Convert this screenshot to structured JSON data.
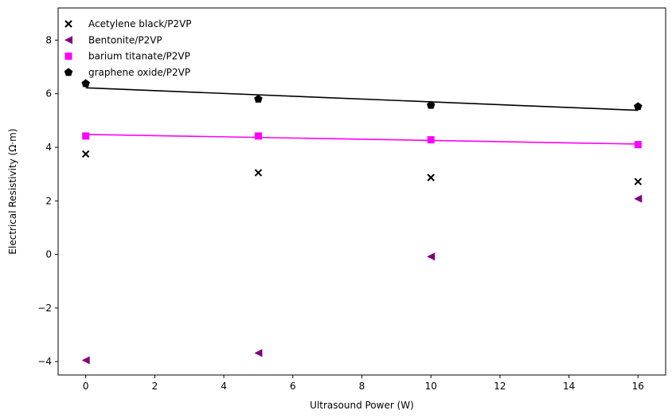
{
  "chart_data": {
    "type": "scatter",
    "title": "",
    "xlabel": "Ultrasound Power (W)",
    "ylabel": "Electrical Resistivity (Ω·m)",
    "xlim": [
      -0.8,
      16.8
    ],
    "ylim": [
      -4.5,
      9.2
    ],
    "x_ticks": [
      0,
      2,
      4,
      6,
      8,
      10,
      12,
      14,
      16
    ],
    "y_ticks": [
      -4,
      -2,
      0,
      2,
      4,
      6,
      8
    ],
    "x_tick_labels": [
      "0",
      "2",
      "4",
      "6",
      "8",
      "10",
      "12",
      "14",
      "16"
    ],
    "y_tick_labels": [
      "−4",
      "−2",
      "0",
      "2",
      "4",
      "6",
      "8"
    ],
    "grid": false,
    "legend_position": "top-left",
    "series": [
      {
        "name": "Acetylene black/P2VP",
        "marker": "x",
        "color": "#000000",
        "x": [
          0,
          5,
          10,
          16
        ],
        "y": [
          3.75,
          3.05,
          2.87,
          2.72
        ]
      },
      {
        "name": "Bentonite/P2VP",
        "marker": "triangle-left",
        "color": "#800080",
        "x": [
          0,
          5,
          10,
          16
        ],
        "y": [
          -3.95,
          -3.68,
          -0.08,
          2.08
        ]
      },
      {
        "name": "barium titanate/P2VP",
        "marker": "square",
        "color": "#ff00ff",
        "x": [
          0,
          5,
          10,
          16
        ],
        "y": [
          4.42,
          4.42,
          4.28,
          4.1
        ],
        "fit_line": {
          "x": [
            0,
            16
          ],
          "y": [
            4.48,
            4.12
          ]
        }
      },
      {
        "name": "graphene oxide/P2VP",
        "marker": "pentagon",
        "color": "#000000",
        "x": [
          0,
          5,
          10,
          16
        ],
        "y": [
          6.38,
          5.8,
          5.57,
          5.52
        ],
        "fit_line": {
          "x": [
            0,
            16
          ],
          "y": [
            6.22,
            5.38
          ]
        }
      }
    ]
  }
}
